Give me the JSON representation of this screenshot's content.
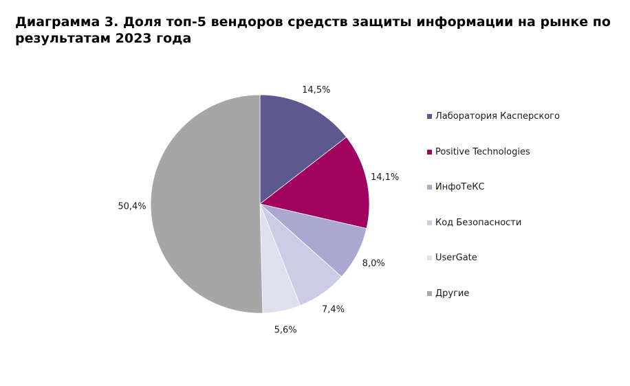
{
  "title": "Диаграмма 3. Доля топ-5 вендоров средств защиты информации на рынке по результатам 2023 года",
  "chart_data": {
    "type": "pie",
    "categories": [
      "Лаборатория Касперского",
      "Positive Technologies",
      "ИнфоТеКС",
      "Код Безопасности",
      "UserGate",
      "Другие"
    ],
    "values": [
      14.5,
      14.1,
      8.0,
      7.4,
      5.6,
      50.4
    ],
    "data_labels": [
      "14,5%",
      "14,1%",
      "8,0%",
      "7,4%",
      "5,6%",
      "50,4%"
    ],
    "colors": [
      "#5e5890",
      "#a0005e",
      "#aaa8d0",
      "#cdcce6",
      "#e0dfee",
      "#a6a6a6"
    ],
    "start": "12 o'clock",
    "direction": "clockwise",
    "legend_position": "right"
  }
}
